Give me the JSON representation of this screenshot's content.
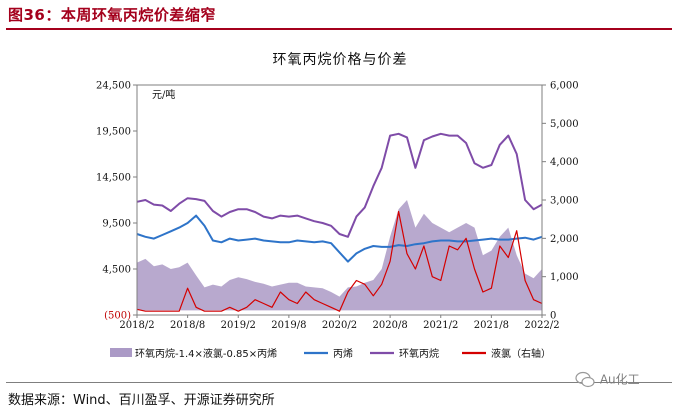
{
  "header": {
    "figure_title": "图36：本周环氧丙烷价差缩窄"
  },
  "source_note": "数据来源：Wind、百川盈孚、开源证券研究所",
  "watermark_text": "Au化工",
  "colors": {
    "spread": "#ab9ac6",
    "propylene": "#2e74c9",
    "po": "#7f4ca8",
    "chlorine": "#d40000",
    "accent": "#a4001c"
  },
  "chart_data": {
    "type": "line",
    "title": "环氧丙烷价格与价差",
    "ylabel_left": "元/吨",
    "ylim_left": [
      -500,
      24500
    ],
    "yticks_left": [
      {
        "v": -500,
        "label": "(500)"
      },
      {
        "v": 4500,
        "label": "4,500"
      },
      {
        "v": 9500,
        "label": "9,500"
      },
      {
        "v": 14500,
        "label": "14,500"
      },
      {
        "v": 19500,
        "label": "19,500"
      },
      {
        "v": 24500,
        "label": "24,500"
      }
    ],
    "ylim_right": [
      0,
      6000
    ],
    "yticks_right": [
      {
        "v": 0,
        "label": "0"
      },
      {
        "v": 1000,
        "label": "1,000"
      },
      {
        "v": 2000,
        "label": "2,000"
      },
      {
        "v": 3000,
        "label": "3,000"
      },
      {
        "v": 4000,
        "label": "4,000"
      },
      {
        "v": 5000,
        "label": "5,000"
      },
      {
        "v": 6000,
        "label": "6,000"
      }
    ],
    "x_range": [
      "2018-02",
      "2022-02"
    ],
    "xtick_labels": [
      "2018/2",
      "2018/8",
      "2019/2",
      "2019/8",
      "2020/2",
      "2020/8",
      "2021/2",
      "2021/8",
      "2022/2"
    ],
    "grid": false,
    "legend_position": "bottom",
    "series": [
      {
        "name": "环氧丙烷-1.4×液氯-0.85×丙烯",
        "type": "area",
        "axis": "left",
        "x": [
          "2018-02",
          "2018-03",
          "2018-04",
          "2018-05",
          "2018-06",
          "2018-07",
          "2018-08",
          "2018-09",
          "2018-10",
          "2018-11",
          "2018-12",
          "2019-01",
          "2019-02",
          "2019-03",
          "2019-04",
          "2019-05",
          "2019-06",
          "2019-07",
          "2019-08",
          "2019-09",
          "2019-10",
          "2019-11",
          "2019-12",
          "2020-01",
          "2020-02",
          "2020-03",
          "2020-04",
          "2020-05",
          "2020-06",
          "2020-07",
          "2020-08",
          "2020-09",
          "2020-10",
          "2020-11",
          "2020-12",
          "2021-01",
          "2021-02",
          "2021-03",
          "2021-04",
          "2021-05",
          "2021-06",
          "2021-07",
          "2021-08",
          "2021-09",
          "2021-10",
          "2021-11",
          "2021-12",
          "2022-01",
          "2022-02"
        ],
        "values": [
          5200,
          5600,
          4800,
          5000,
          4500,
          4700,
          5200,
          3800,
          2500,
          2800,
          2600,
          3300,
          3600,
          3400,
          3100,
          2900,
          2600,
          2800,
          3000,
          3000,
          2600,
          2500,
          2400,
          2000,
          1500,
          2500,
          2600,
          3000,
          3300,
          4500,
          8000,
          11000,
          12000,
          9000,
          10500,
          9500,
          9000,
          8500,
          9000,
          9500,
          9000,
          6000,
          6500,
          8000,
          9000,
          6000,
          4000,
          3500,
          4500
        ]
      },
      {
        "name": "丙烯",
        "type": "line",
        "axis": "left",
        "x": [
          "2018-02",
          "2018-03",
          "2018-04",
          "2018-05",
          "2018-06",
          "2018-07",
          "2018-08",
          "2018-09",
          "2018-10",
          "2018-11",
          "2018-12",
          "2019-01",
          "2019-02",
          "2019-03",
          "2019-04",
          "2019-05",
          "2019-06",
          "2019-07",
          "2019-08",
          "2019-09",
          "2019-10",
          "2019-11",
          "2019-12",
          "2020-01",
          "2020-02",
          "2020-03",
          "2020-04",
          "2020-05",
          "2020-06",
          "2020-07",
          "2020-08",
          "2020-09",
          "2020-10",
          "2020-11",
          "2020-12",
          "2021-01",
          "2021-02",
          "2021-03",
          "2021-04",
          "2021-05",
          "2021-06",
          "2021-07",
          "2021-08",
          "2021-09",
          "2021-10",
          "2021-11",
          "2021-12",
          "2022-01",
          "2022-02"
        ],
        "values": [
          8300,
          8000,
          7800,
          8200,
          8600,
          9000,
          9500,
          10300,
          9200,
          7600,
          7400,
          7800,
          7600,
          7700,
          7800,
          7600,
          7500,
          7400,
          7400,
          7600,
          7500,
          7400,
          7500,
          7300,
          6300,
          5300,
          6200,
          6700,
          7000,
          6900,
          6900,
          7100,
          7000,
          7200,
          7300,
          7500,
          7600,
          7600,
          7500,
          7500,
          7600,
          7700,
          7800,
          7700,
          7700,
          7800,
          7900,
          7700,
          8000
        ]
      },
      {
        "name": "环氧丙烷",
        "type": "line",
        "axis": "left",
        "x": [
          "2018-02",
          "2018-03",
          "2018-04",
          "2018-05",
          "2018-06",
          "2018-07",
          "2018-08",
          "2018-09",
          "2018-10",
          "2018-11",
          "2018-12",
          "2019-01",
          "2019-02",
          "2019-03",
          "2019-04",
          "2019-05",
          "2019-06",
          "2019-07",
          "2019-08",
          "2019-09",
          "2019-10",
          "2019-11",
          "2019-12",
          "2020-01",
          "2020-02",
          "2020-03",
          "2020-04",
          "2020-05",
          "2020-06",
          "2020-07",
          "2020-08",
          "2020-09",
          "2020-10",
          "2020-11",
          "2020-12",
          "2021-01",
          "2021-02",
          "2021-03",
          "2021-04",
          "2021-05",
          "2021-06",
          "2021-07",
          "2021-08",
          "2021-09",
          "2021-10",
          "2021-11",
          "2021-12",
          "2022-01",
          "2022-02"
        ],
        "values": [
          11800,
          12000,
          11500,
          11400,
          10800,
          11600,
          12200,
          12100,
          11900,
          10800,
          10200,
          10700,
          11000,
          11000,
          10700,
          10200,
          10000,
          10300,
          10200,
          10300,
          10000,
          9700,
          9500,
          9200,
          8300,
          8000,
          10200,
          11200,
          13500,
          15500,
          19000,
          19200,
          18800,
          15500,
          18500,
          18900,
          19200,
          19000,
          19000,
          18200,
          16000,
          15500,
          15800,
          18000,
          19000,
          17000,
          12000,
          11000,
          11500
        ]
      },
      {
        "name": "液氯（右轴）",
        "type": "line",
        "axis": "right",
        "x": [
          "2018-02",
          "2018-03",
          "2018-04",
          "2018-05",
          "2018-06",
          "2018-07",
          "2018-08",
          "2018-09",
          "2018-10",
          "2018-11",
          "2018-12",
          "2019-01",
          "2019-02",
          "2019-03",
          "2019-04",
          "2019-05",
          "2019-06",
          "2019-07",
          "2019-08",
          "2019-09",
          "2019-10",
          "2019-11",
          "2019-12",
          "2020-01",
          "2020-02",
          "2020-03",
          "2020-04",
          "2020-05",
          "2020-06",
          "2020-07",
          "2020-08",
          "2020-09",
          "2020-10",
          "2020-11",
          "2020-12",
          "2021-01",
          "2021-02",
          "2021-03",
          "2021-04",
          "2021-05",
          "2021-06",
          "2021-07",
          "2021-08",
          "2021-09",
          "2021-10",
          "2021-11",
          "2021-12",
          "2022-01",
          "2022-02"
        ],
        "values": [
          150,
          100,
          100,
          100,
          100,
          100,
          700,
          200,
          100,
          100,
          100,
          200,
          100,
          200,
          400,
          300,
          200,
          600,
          400,
          300,
          600,
          400,
          300,
          200,
          100,
          600,
          900,
          800,
          500,
          800,
          1400,
          2700,
          1600,
          1200,
          1800,
          1000,
          900,
          1800,
          1700,
          2000,
          1200,
          600,
          700,
          1800,
          1500,
          2200,
          900,
          400,
          300
        ]
      }
    ]
  }
}
